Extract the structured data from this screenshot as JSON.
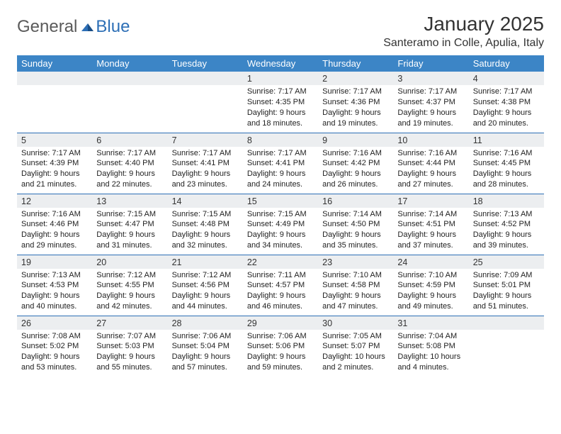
{
  "brand": {
    "part1": "General",
    "part2": "Blue"
  },
  "title": "January 2025",
  "location": "Santeramo in Colle, Apulia, Italy",
  "colors": {
    "header_bg": "#3c85c6",
    "daynum_bg": "#eceef0",
    "week_divider": "#2d6fb6",
    "brand_blue": "#2d6fb6",
    "text": "#222222"
  },
  "day_headers": [
    "Sunday",
    "Monday",
    "Tuesday",
    "Wednesday",
    "Thursday",
    "Friday",
    "Saturday"
  ],
  "weeks": [
    [
      null,
      null,
      null,
      {
        "n": "1",
        "sr": "Sunrise: 7:17 AM",
        "ss": "Sunset: 4:35 PM",
        "dl": "Daylight: 9 hours and 18 minutes."
      },
      {
        "n": "2",
        "sr": "Sunrise: 7:17 AM",
        "ss": "Sunset: 4:36 PM",
        "dl": "Daylight: 9 hours and 19 minutes."
      },
      {
        "n": "3",
        "sr": "Sunrise: 7:17 AM",
        "ss": "Sunset: 4:37 PM",
        "dl": "Daylight: 9 hours and 19 minutes."
      },
      {
        "n": "4",
        "sr": "Sunrise: 7:17 AM",
        "ss": "Sunset: 4:38 PM",
        "dl": "Daylight: 9 hours and 20 minutes."
      }
    ],
    [
      {
        "n": "5",
        "sr": "Sunrise: 7:17 AM",
        "ss": "Sunset: 4:39 PM",
        "dl": "Daylight: 9 hours and 21 minutes."
      },
      {
        "n": "6",
        "sr": "Sunrise: 7:17 AM",
        "ss": "Sunset: 4:40 PM",
        "dl": "Daylight: 9 hours and 22 minutes."
      },
      {
        "n": "7",
        "sr": "Sunrise: 7:17 AM",
        "ss": "Sunset: 4:41 PM",
        "dl": "Daylight: 9 hours and 23 minutes."
      },
      {
        "n": "8",
        "sr": "Sunrise: 7:17 AM",
        "ss": "Sunset: 4:41 PM",
        "dl": "Daylight: 9 hours and 24 minutes."
      },
      {
        "n": "9",
        "sr": "Sunrise: 7:16 AM",
        "ss": "Sunset: 4:42 PM",
        "dl": "Daylight: 9 hours and 26 minutes."
      },
      {
        "n": "10",
        "sr": "Sunrise: 7:16 AM",
        "ss": "Sunset: 4:44 PM",
        "dl": "Daylight: 9 hours and 27 minutes."
      },
      {
        "n": "11",
        "sr": "Sunrise: 7:16 AM",
        "ss": "Sunset: 4:45 PM",
        "dl": "Daylight: 9 hours and 28 minutes."
      }
    ],
    [
      {
        "n": "12",
        "sr": "Sunrise: 7:16 AM",
        "ss": "Sunset: 4:46 PM",
        "dl": "Daylight: 9 hours and 29 minutes."
      },
      {
        "n": "13",
        "sr": "Sunrise: 7:15 AM",
        "ss": "Sunset: 4:47 PM",
        "dl": "Daylight: 9 hours and 31 minutes."
      },
      {
        "n": "14",
        "sr": "Sunrise: 7:15 AM",
        "ss": "Sunset: 4:48 PM",
        "dl": "Daylight: 9 hours and 32 minutes."
      },
      {
        "n": "15",
        "sr": "Sunrise: 7:15 AM",
        "ss": "Sunset: 4:49 PM",
        "dl": "Daylight: 9 hours and 34 minutes."
      },
      {
        "n": "16",
        "sr": "Sunrise: 7:14 AM",
        "ss": "Sunset: 4:50 PM",
        "dl": "Daylight: 9 hours and 35 minutes."
      },
      {
        "n": "17",
        "sr": "Sunrise: 7:14 AM",
        "ss": "Sunset: 4:51 PM",
        "dl": "Daylight: 9 hours and 37 minutes."
      },
      {
        "n": "18",
        "sr": "Sunrise: 7:13 AM",
        "ss": "Sunset: 4:52 PM",
        "dl": "Daylight: 9 hours and 39 minutes."
      }
    ],
    [
      {
        "n": "19",
        "sr": "Sunrise: 7:13 AM",
        "ss": "Sunset: 4:53 PM",
        "dl": "Daylight: 9 hours and 40 minutes."
      },
      {
        "n": "20",
        "sr": "Sunrise: 7:12 AM",
        "ss": "Sunset: 4:55 PM",
        "dl": "Daylight: 9 hours and 42 minutes."
      },
      {
        "n": "21",
        "sr": "Sunrise: 7:12 AM",
        "ss": "Sunset: 4:56 PM",
        "dl": "Daylight: 9 hours and 44 minutes."
      },
      {
        "n": "22",
        "sr": "Sunrise: 7:11 AM",
        "ss": "Sunset: 4:57 PM",
        "dl": "Daylight: 9 hours and 46 minutes."
      },
      {
        "n": "23",
        "sr": "Sunrise: 7:10 AM",
        "ss": "Sunset: 4:58 PM",
        "dl": "Daylight: 9 hours and 47 minutes."
      },
      {
        "n": "24",
        "sr": "Sunrise: 7:10 AM",
        "ss": "Sunset: 4:59 PM",
        "dl": "Daylight: 9 hours and 49 minutes."
      },
      {
        "n": "25",
        "sr": "Sunrise: 7:09 AM",
        "ss": "Sunset: 5:01 PM",
        "dl": "Daylight: 9 hours and 51 minutes."
      }
    ],
    [
      {
        "n": "26",
        "sr": "Sunrise: 7:08 AM",
        "ss": "Sunset: 5:02 PM",
        "dl": "Daylight: 9 hours and 53 minutes."
      },
      {
        "n": "27",
        "sr": "Sunrise: 7:07 AM",
        "ss": "Sunset: 5:03 PM",
        "dl": "Daylight: 9 hours and 55 minutes."
      },
      {
        "n": "28",
        "sr": "Sunrise: 7:06 AM",
        "ss": "Sunset: 5:04 PM",
        "dl": "Daylight: 9 hours and 57 minutes."
      },
      {
        "n": "29",
        "sr": "Sunrise: 7:06 AM",
        "ss": "Sunset: 5:06 PM",
        "dl": "Daylight: 9 hours and 59 minutes."
      },
      {
        "n": "30",
        "sr": "Sunrise: 7:05 AM",
        "ss": "Sunset: 5:07 PM",
        "dl": "Daylight: 10 hours and 2 minutes."
      },
      {
        "n": "31",
        "sr": "Sunrise: 7:04 AM",
        "ss": "Sunset: 5:08 PM",
        "dl": "Daylight: 10 hours and 4 minutes."
      },
      null
    ]
  ]
}
